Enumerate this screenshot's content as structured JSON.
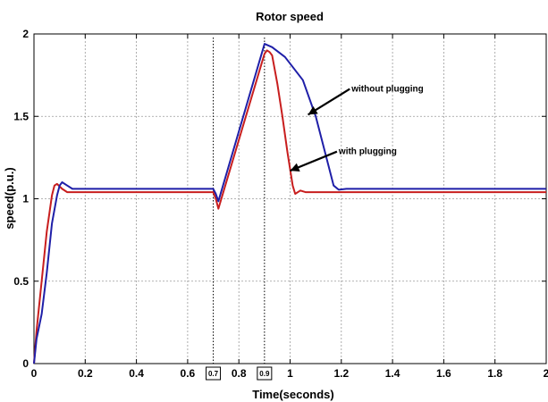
{
  "chart_data": {
    "type": "line",
    "title": "Rotor speed",
    "xlabel": "Time(seconds)",
    "ylabel": "speed(p.u.)",
    "xlim": [
      0,
      2
    ],
    "ylim": [
      0,
      2
    ],
    "grid": true,
    "x_ticks": [
      0,
      0.2,
      0.4,
      0.6,
      0.8,
      1,
      1.2,
      1.4,
      1.6,
      1.8,
      2
    ],
    "x_tick_labels": [
      "0",
      "0.2",
      "0.4",
      "0.6",
      "0.8",
      "1",
      "1.2",
      "1.4",
      "1.6",
      "1.8",
      "2"
    ],
    "y_ticks": [
      0,
      0.5,
      1,
      1.5,
      2
    ],
    "y_tick_labels": [
      "0",
      "0.5",
      "1",
      "1.5",
      "2"
    ],
    "series": [
      {
        "name": "without plugging",
        "color": "#1f1fa8",
        "points": [
          [
            0,
            0
          ],
          [
            0.01,
            0.15
          ],
          [
            0.03,
            0.3
          ],
          [
            0.05,
            0.55
          ],
          [
            0.07,
            0.85
          ],
          [
            0.09,
            1.02
          ],
          [
            0.1,
            1.08
          ],
          [
            0.11,
            1.1
          ],
          [
            0.13,
            1.08
          ],
          [
            0.15,
            1.06
          ],
          [
            0.18,
            1.06
          ],
          [
            0.4,
            1.06
          ],
          [
            0.6,
            1.06
          ],
          [
            0.7,
            1.06
          ],
          [
            0.71,
            1.03
          ],
          [
            0.72,
            0.985
          ],
          [
            0.9,
            1.94
          ],
          [
            0.93,
            1.92
          ],
          [
            0.98,
            1.86
          ],
          [
            1.05,
            1.72
          ],
          [
            1.1,
            1.5
          ],
          [
            1.15,
            1.2
          ],
          [
            1.17,
            1.08
          ],
          [
            1.19,
            1.055
          ],
          [
            1.22,
            1.06
          ],
          [
            1.5,
            1.06
          ],
          [
            2,
            1.06
          ]
        ]
      },
      {
        "name": "with plugging",
        "color": "#c81e1e",
        "points": [
          [
            0,
            0
          ],
          [
            0.01,
            0.2
          ],
          [
            0.03,
            0.5
          ],
          [
            0.05,
            0.8
          ],
          [
            0.07,
            1.02
          ],
          [
            0.08,
            1.08
          ],
          [
            0.09,
            1.09
          ],
          [
            0.11,
            1.06
          ],
          [
            0.13,
            1.04
          ],
          [
            0.16,
            1.04
          ],
          [
            0.4,
            1.04
          ],
          [
            0.6,
            1.04
          ],
          [
            0.7,
            1.04
          ],
          [
            0.71,
            1.0
          ],
          [
            0.72,
            0.94
          ],
          [
            0.9,
            1.88
          ],
          [
            0.91,
            1.9
          ],
          [
            0.92,
            1.89
          ],
          [
            0.93,
            1.87
          ],
          [
            0.95,
            1.7
          ],
          [
            0.97,
            1.5
          ],
          [
            0.99,
            1.28
          ],
          [
            1.01,
            1.08
          ],
          [
            1.02,
            1.03
          ],
          [
            1.04,
            1.05
          ],
          [
            1.06,
            1.04
          ],
          [
            1.1,
            1.04
          ],
          [
            1.5,
            1.04
          ],
          [
            2,
            1.04
          ]
        ]
      }
    ],
    "annotations": [
      {
        "text": "without plugging",
        "x": 1.24,
        "y": 1.65,
        "arrow_to": [
          1.07,
          1.51
        ]
      },
      {
        "text": "with plugging",
        "x": 1.19,
        "y": 1.27,
        "arrow_to": [
          1.0,
          1.17
        ]
      }
    ],
    "markers": [
      {
        "label": "0.7",
        "x": 0.7
      },
      {
        "label": "0.9",
        "x": 0.9
      }
    ]
  }
}
